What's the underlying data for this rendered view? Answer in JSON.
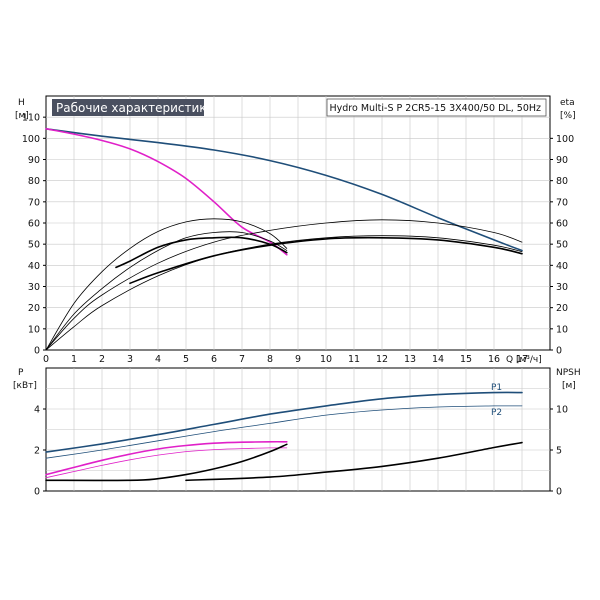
{
  "header": {
    "title": "Рабочие характеристики",
    "model": "Hydro Multi-S P 2CR5-15 3X400/50 DL, 50Hz"
  },
  "colors": {
    "dark_blue": "#1f4e79",
    "magenta": "#e020c8",
    "black": "#000000",
    "grid": "#c8c8c8",
    "title_bg": "#4a5060"
  },
  "chart_data": [
    {
      "id": "performance",
      "type": "line",
      "y_left_label": "H",
      "y_left_unit": "[м]",
      "y_right_label": "eta",
      "y_right_unit": "[%]",
      "x_label": "Q [м³/ч]",
      "xlim": [
        0,
        18
      ],
      "x_ticks": [
        0,
        1,
        2,
        3,
        4,
        5,
        6,
        7,
        8,
        9,
        10,
        11,
        12,
        13,
        14,
        15,
        16,
        17
      ],
      "ylim_left": [
        0,
        120
      ],
      "y_left_ticks": [
        0,
        10,
        20,
        30,
        40,
        50,
        60,
        70,
        80,
        90,
        100,
        110
      ],
      "ylim_right": [
        0,
        120
      ],
      "y_right_ticks": [
        0,
        10,
        20,
        30,
        40,
        50,
        60,
        70,
        80,
        90,
        100
      ],
      "grid": true,
      "series": [
        {
          "axis": "left",
          "color": "#1f4e79",
          "width": 1.6,
          "x": [
            0,
            2,
            4,
            6,
            8,
            10,
            12,
            14,
            16,
            17
          ],
          "y": [
            104.5,
            101,
            98,
            94.5,
            89.5,
            82.5,
            73.5,
            62.5,
            52,
            47
          ]
        },
        {
          "axis": "left",
          "color": "#e020c8",
          "width": 1.6,
          "x": [
            0,
            1,
            2,
            3,
            4,
            5,
            6,
            7,
            8,
            8.6
          ],
          "y": [
            104.5,
            102,
            99,
            95,
            89,
            81,
            70,
            58,
            51,
            45
          ]
        },
        {
          "axis": "right",
          "color": "#000000",
          "width": 1.6,
          "x": [
            2.5,
            3,
            4,
            5,
            6,
            7,
            8,
            8.6
          ],
          "y": [
            39,
            42,
            48.5,
            52,
            53,
            53,
            50,
            46
          ]
        },
        {
          "axis": "right",
          "color": "#000000",
          "width": 0.8,
          "x": [
            0,
            1,
            2,
            3,
            4,
            5,
            6,
            7,
            8,
            8.6
          ],
          "y": [
            0,
            22,
            37,
            48,
            56,
            60.5,
            62,
            60.5,
            55,
            48
          ]
        },
        {
          "axis": "right",
          "color": "#000000",
          "width": 0.8,
          "x": [
            0,
            1,
            2,
            3,
            4,
            5,
            6,
            7,
            8,
            8.6
          ],
          "y": [
            0,
            17,
            29,
            39,
            47,
            53,
            55.5,
            55.5,
            51.5,
            47
          ]
        },
        {
          "axis": "right",
          "color": "#000000",
          "width": 1.6,
          "x": [
            3,
            4,
            6,
            8,
            10,
            12,
            14,
            16,
            17
          ],
          "y": [
            31.5,
            36.5,
            44.5,
            49.5,
            52.5,
            53,
            52,
            48.5,
            45.5
          ]
        },
        {
          "axis": "right",
          "color": "#000000",
          "width": 0.8,
          "x": [
            0,
            1,
            2,
            4,
            6,
            8,
            10,
            12,
            14,
            16,
            17
          ],
          "y": [
            0,
            15,
            26,
            41,
            51,
            56.5,
            60,
            61.5,
            60,
            55.5,
            51
          ]
        },
        {
          "axis": "right",
          "color": "#000000",
          "width": 0.8,
          "x": [
            0,
            1,
            2,
            4,
            6,
            8,
            10,
            12,
            14,
            16,
            17
          ],
          "y": [
            0,
            11,
            21,
            35,
            44.5,
            50,
            53,
            54,
            53,
            49.5,
            46.5
          ]
        }
      ]
    },
    {
      "id": "power_npsh",
      "type": "line",
      "y_left_label": "P",
      "y_left_unit": "[кВт]",
      "y_right_label": "NPSH",
      "y_right_unit": "[м]",
      "xlim": [
        0,
        18
      ],
      "ylim_left": [
        0,
        6
      ],
      "y_left_ticks": [
        0,
        2,
        4
      ],
      "ylim_right": [
        0,
        15
      ],
      "y_right_ticks": [
        0,
        5,
        10
      ],
      "grid": true,
      "series": [
        {
          "name": "P1",
          "axis": "left",
          "color": "#1f4e79",
          "width": 1.6,
          "x": [
            0,
            2,
            4,
            6,
            8,
            10,
            12,
            14,
            16,
            17
          ],
          "y": [
            1.9,
            2.3,
            2.75,
            3.25,
            3.75,
            4.15,
            4.5,
            4.7,
            4.8,
            4.8
          ]
        },
        {
          "name": "P2",
          "axis": "left",
          "color": "#1f4e79",
          "width": 0.8,
          "x": [
            0,
            2,
            4,
            6,
            8,
            10,
            12,
            14,
            16,
            17
          ],
          "y": [
            1.6,
            2.0,
            2.45,
            2.9,
            3.3,
            3.7,
            3.95,
            4.1,
            4.15,
            4.15
          ]
        },
        {
          "axis": "left",
          "color": "#e020c8",
          "width": 1.6,
          "x": [
            0,
            1,
            2,
            3,
            4,
            5,
            6,
            7,
            8,
            8.6
          ],
          "y": [
            0.8,
            1.15,
            1.5,
            1.8,
            2.05,
            2.22,
            2.33,
            2.38,
            2.4,
            2.4
          ]
        },
        {
          "axis": "left",
          "color": "#e020c8",
          "width": 0.8,
          "x": [
            0,
            1,
            2,
            3,
            4,
            5,
            6,
            7,
            8,
            8.6
          ],
          "y": [
            0.65,
            0.95,
            1.25,
            1.52,
            1.75,
            1.92,
            2.02,
            2.07,
            2.1,
            2.1
          ]
        },
        {
          "axis": "right",
          "color": "#000000",
          "width": 1.6,
          "x": [
            0,
            3,
            4,
            5,
            6,
            7,
            8,
            8.6
          ],
          "y": [
            1.3,
            1.3,
            1.5,
            2.0,
            2.7,
            3.6,
            4.8,
            5.7
          ]
        },
        {
          "axis": "right",
          "color": "#000000",
          "width": 1.6,
          "x": [
            5,
            8,
            10,
            12,
            14,
            16,
            17
          ],
          "y": [
            1.3,
            1.7,
            2.3,
            3.0,
            4.0,
            5.3,
            5.9
          ]
        }
      ]
    }
  ]
}
